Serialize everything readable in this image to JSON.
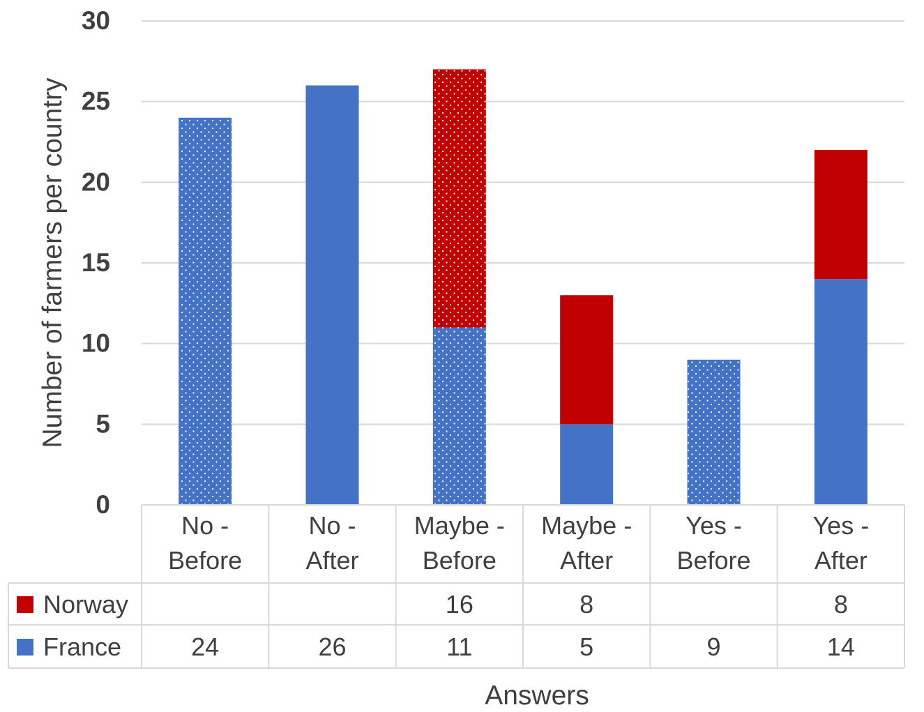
{
  "chart_data": {
    "type": "bar",
    "stacked": true,
    "title": "",
    "xlabel": "Answers",
    "ylabel": "Number of farmers per country",
    "ylim": [
      0,
      30
    ],
    "yticks": [
      0,
      5,
      10,
      15,
      20,
      25,
      30
    ],
    "grid": true,
    "legend": "data-table",
    "categories": [
      [
        "No -",
        "Before"
      ],
      [
        "No -",
        "After"
      ],
      [
        "Maybe -",
        "Before"
      ],
      [
        "Maybe -",
        "After"
      ],
      [
        "Yes -",
        "Before"
      ],
      [
        "Yes -",
        "After"
      ]
    ],
    "dotted_pattern_categories": [
      true,
      false,
      true,
      false,
      true,
      false
    ],
    "series": [
      {
        "name": "France",
        "color": "#4472C4",
        "values": [
          24,
          26,
          11,
          5,
          9,
          14
        ]
      },
      {
        "name": "Norway",
        "color": "#C00000",
        "values": [
          null,
          null,
          16,
          8,
          null,
          8
        ]
      }
    ],
    "table_row_order": [
      "Norway",
      "France"
    ]
  }
}
